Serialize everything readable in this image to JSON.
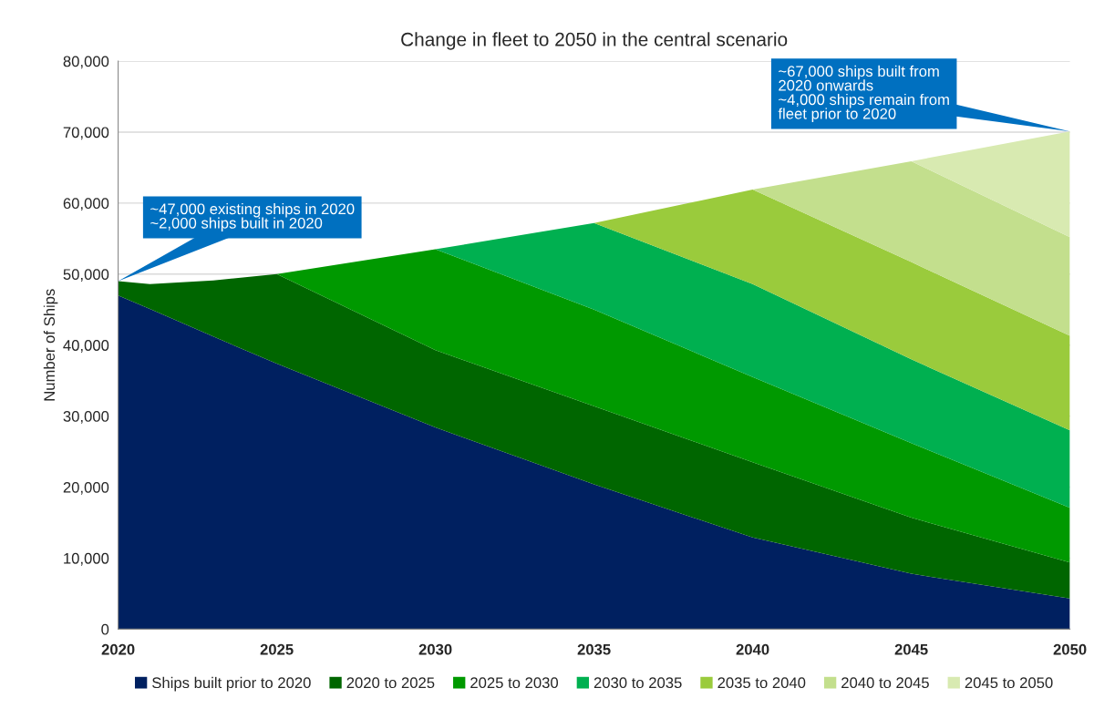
{
  "chart_data": {
    "type": "area",
    "title": "Change in fleet to 2050 in the central scenario",
    "ylabel": "Number of Ships",
    "stacked": true,
    "x": [
      2020,
      2021,
      2023,
      2025,
      2030,
      2035,
      2040,
      2045,
      2050
    ],
    "series": [
      {
        "name": "Ships built prior to 2020",
        "color": "#002060",
        "values": [
          47000,
          45100,
          41200,
          37400,
          28400,
          20400,
          12900,
          7800,
          4300
        ]
      },
      {
        "name": "2020 to 2025",
        "color": "#006600",
        "values": [
          2000,
          3500,
          7900,
          12600,
          10900,
          11000,
          10600,
          7900,
          5100
        ]
      },
      {
        "name": "2025 to 2030",
        "color": "#009900",
        "values": [
          null,
          null,
          null,
          0,
          14200,
          13600,
          12000,
          10500,
          7700
        ]
      },
      {
        "name": "2030 to 2035",
        "color": "#00b050",
        "values": [
          null,
          null,
          null,
          null,
          0,
          12200,
          13100,
          11800,
          10900
        ]
      },
      {
        "name": "2035 to 2040",
        "color": "#9acb3c",
        "values": [
          null,
          null,
          null,
          null,
          null,
          0,
          13300,
          13700,
          13300
        ]
      },
      {
        "name": "2040 to 2045",
        "color": "#c3df8d",
        "values": [
          null,
          null,
          null,
          null,
          null,
          null,
          0,
          14200,
          13900
        ]
      },
      {
        "name": "2045 to 2050",
        "color": "#d8eab1",
        "values": [
          null,
          null,
          null,
          null,
          null,
          null,
          null,
          0,
          14900
        ]
      }
    ],
    "annotations": [
      "~47,000 existing ships in 2020\n~2,000 ships built in 2020",
      {
        "text": "~67,000 ships built from\n2020 onwards\n~4,000 ships remain from\nfleet prior to 2020",
        "x": 2050,
        "y": 70100
      }
    ],
    "xlim": [
      2020,
      2050
    ],
    "xticks": [
      2020,
      2025,
      2030,
      2035,
      2040,
      2045,
      2050
    ],
    "ylim": [
      0,
      80000
    ],
    "yticks": [
      {
        "value": 0,
        "label": "0"
      },
      {
        "value": 10000,
        "label": "10,000"
      },
      {
        "value": 20000,
        "label": "20,000"
      },
      {
        "value": 30000,
        "label": "30,000"
      },
      {
        "value": 40000,
        "label": "40,000"
      },
      {
        "value": 50000,
        "label": "50,000"
      },
      {
        "value": 60000,
        "label": "60,000"
      },
      {
        "value": 70000,
        "label": "70,000"
      },
      {
        "value": 80000,
        "label": "80,000"
      }
    ],
    "grid": "y",
    "legend": "bottom"
  }
}
